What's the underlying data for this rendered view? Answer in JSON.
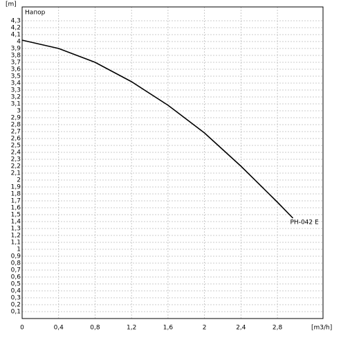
{
  "chart_data": {
    "type": "line",
    "y_label": "Напор",
    "y_unit": "[m]",
    "x_unit": "[m3/h]",
    "x": [
      0,
      0.4,
      0.8,
      1.2,
      1.6,
      2,
      2.4,
      2.8,
      2.97
    ],
    "series": [
      {
        "name": "PH-042 E",
        "color": "#000000",
        "values": [
          4.02,
          3.9,
          3.7,
          3.42,
          3.08,
          2.68,
          2.2,
          1.68,
          1.45
        ]
      }
    ],
    "xlim": [
      0,
      3.3
    ],
    "ylim": [
      0,
      4.5
    ],
    "xticks": [
      0,
      {
        "value": 0.4,
        "label": "0,4"
      },
      {
        "value": 0.8,
        "label": "0,8"
      },
      {
        "value": 1.2,
        "label": "1,2"
      },
      {
        "value": 1.6,
        "label": "1,6"
      },
      2,
      {
        "value": 2.4,
        "label": "2,4"
      },
      {
        "value": 2.8,
        "label": "2,8"
      }
    ],
    "yticks": [
      {
        "value": 0.1,
        "label": "0,1"
      },
      {
        "value": 0.2,
        "label": "0,2"
      },
      {
        "value": 0.3,
        "label": "0,3"
      },
      {
        "value": 0.4,
        "label": "0,4"
      },
      {
        "value": 0.5,
        "label": "0,5"
      },
      {
        "value": 0.6,
        "label": "0,6"
      },
      {
        "value": 0.7,
        "label": "0,7"
      },
      {
        "value": 0.8,
        "label": "0,8"
      },
      {
        "value": 0.9,
        "label": "0,9"
      },
      1,
      {
        "value": 1.1,
        "label": "1,1"
      },
      {
        "value": 1.2,
        "label": "1,2"
      },
      {
        "value": 1.3,
        "label": "1,3"
      },
      {
        "value": 1.4,
        "label": "1,4"
      },
      {
        "value": 1.5,
        "label": "1,5"
      },
      {
        "value": 1.6,
        "label": "1,6"
      },
      {
        "value": 1.7,
        "label": "1,7"
      },
      {
        "value": 1.8,
        "label": "1,8"
      },
      {
        "value": 1.9,
        "label": "1,9"
      },
      2,
      {
        "value": 2.1,
        "label": "2,1"
      },
      {
        "value": 2.2,
        "label": "2,2"
      },
      {
        "value": 2.3,
        "label": "2,3"
      },
      {
        "value": 2.4,
        "label": "2,4"
      },
      {
        "value": 2.5,
        "label": "2,5"
      },
      {
        "value": 2.6,
        "label": "2,6"
      },
      {
        "value": 2.7,
        "label": "2,7"
      },
      {
        "value": 2.8,
        "label": "2,8"
      },
      {
        "value": 2.9,
        "label": "2,9"
      },
      3,
      {
        "value": 3.1,
        "label": "3,1"
      },
      {
        "value": 3.2,
        "label": "3,2"
      },
      {
        "value": 3.3,
        "label": "3,3"
      },
      {
        "value": 3.4,
        "label": "3,4"
      },
      {
        "value": 3.5,
        "label": "3,5"
      },
      {
        "value": 3.6,
        "label": "3,6"
      },
      {
        "value": 3.7,
        "label": "3,7"
      },
      {
        "value": 3.8,
        "label": "3,8"
      },
      {
        "value": 3.9,
        "label": "3,9"
      },
      4,
      {
        "value": 4.1,
        "label": "4,1"
      },
      {
        "value": 4.2,
        "label": "4,2"
      },
      {
        "value": 4.3,
        "label": "4,3"
      }
    ],
    "grid": true
  }
}
